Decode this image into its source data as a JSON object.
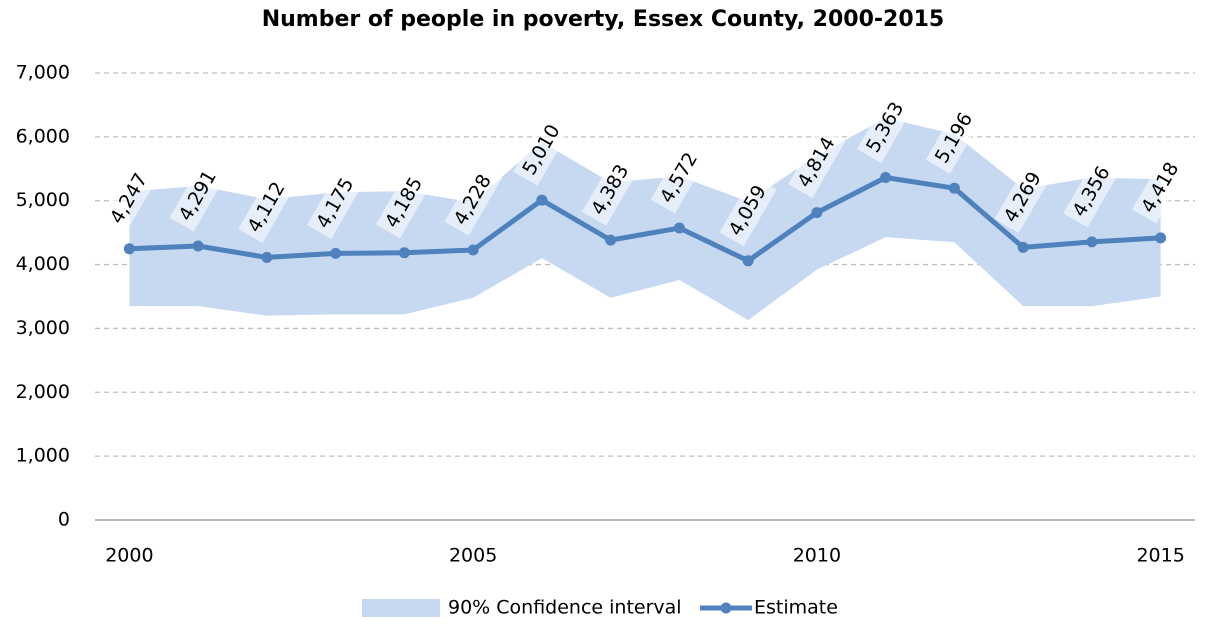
{
  "chart_data": {
    "type": "line",
    "title": "Number of people in poverty, Essex County, 2000-2015",
    "x": [
      2000,
      2001,
      2002,
      2003,
      2004,
      2005,
      2006,
      2007,
      2008,
      2009,
      2010,
      2011,
      2012,
      2013,
      2014,
      2015
    ],
    "xlim": [
      1999.5,
      2015.5
    ],
    "xticks": [
      2000,
      2005,
      2010,
      2015
    ],
    "ylim": [
      0,
      7000
    ],
    "yticks": [
      0,
      {
        "value": 1000,
        "label": "1,000"
      },
      {
        "value": 2000,
        "label": "2,000"
      },
      {
        "value": 3000,
        "label": "3,000"
      },
      {
        "value": 4000,
        "label": "4,000"
      },
      {
        "value": 5000,
        "label": "5,000"
      },
      {
        "value": 6000,
        "label": "6,000"
      },
      {
        "value": 7000,
        "label": "7,000"
      }
    ],
    "grid": true,
    "legend": "bottom",
    "series": [
      {
        "name": "90% Confidence interval",
        "color": "#c6d9f1",
        "lower": [
          3350,
          3350,
          3200,
          3220,
          3220,
          3480,
          4100,
          3480,
          3760,
          3130,
          3920,
          4430,
          4350,
          3350,
          3350,
          3500
        ],
        "upper": [
          5144,
          5232,
          5024,
          5130,
          5150,
          4976,
          5920,
          5286,
          5384,
          4988,
          5708,
          6296,
          6042,
          5188,
          5362,
          5336
        ]
      },
      {
        "name": "Estimate",
        "color": "#4f81bd",
        "values": [
          4247,
          4291,
          4112,
          4175,
          4185,
          4228,
          5010,
          4383,
          4572,
          4059,
          4814,
          5363,
          5196,
          4269,
          4356,
          4418
        ],
        "value_labels": [
          "4,247",
          "4,291",
          "4,112",
          "4,175",
          "4,185",
          "4,228",
          "5,010",
          "4,383",
          "4,572",
          "4,059",
          "4,814",
          "5,363",
          "5,196",
          "4,269",
          "4,356",
          "4,418"
        ]
      }
    ]
  }
}
